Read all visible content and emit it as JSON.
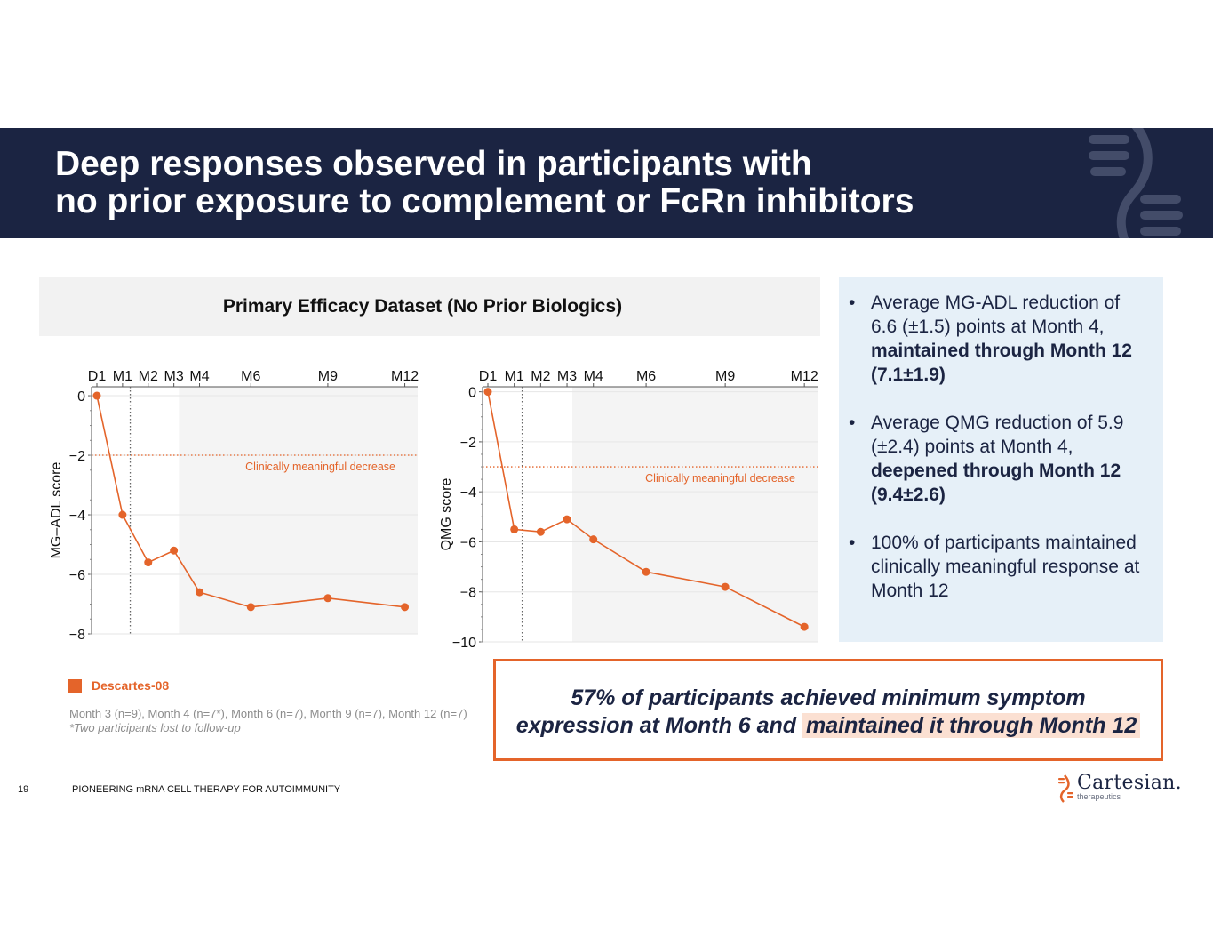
{
  "header": {
    "title_line1": "Deep responses observed in participants with",
    "title_line2": "no prior exposure to complement or FcRn inhibitors"
  },
  "dataset_title": "Primary Efficacy Dataset (No Prior Biologics)",
  "colors": {
    "accent": "#e4642a",
    "navy": "#1b2442",
    "panel": "#e6f0f8",
    "highlight": "#fbe0d2"
  },
  "chart_data": [
    {
      "type": "line",
      "name": "mg-adl",
      "ylabel": "MG–ADL score",
      "x_months": [
        0,
        1,
        2,
        3,
        4,
        6,
        9,
        12
      ],
      "x_ticks": [
        0,
        1,
        2,
        3,
        4,
        6,
        9,
        12
      ],
      "x_tick_labels": [
        "D1",
        "M1",
        "M2",
        "M3",
        "M4",
        "M6",
        "M9",
        "M12"
      ],
      "x_range": [
        0,
        12.5
      ],
      "y_ticks": [
        0,
        -2,
        -4,
        -6,
        -8
      ],
      "y_tick_labels": [
        "0",
        "−2",
        "−4",
        "−6",
        "−8"
      ],
      "ylim": [
        -8,
        0.3
      ],
      "series": [
        {
          "name": "Descartes-08",
          "values": [
            0,
            -4.0,
            -5.6,
            -5.2,
            -6.6,
            -7.1,
            -6.8,
            -7.1
          ]
        }
      ],
      "threshold": -2,
      "threshold_label": "Clinically meaningful decrease",
      "vline_month": 1.3,
      "shaded_from_month": 3.2
    },
    {
      "type": "line",
      "name": "qmg",
      "ylabel": "QMG score",
      "x_months": [
        0,
        1,
        2,
        3,
        4,
        6,
        9,
        12
      ],
      "x_ticks": [
        0,
        1,
        2,
        3,
        4,
        6,
        9,
        12
      ],
      "x_tick_labels": [
        "D1",
        "M1",
        "M2",
        "M3",
        "M4",
        "M6",
        "M9",
        "M12"
      ],
      "x_range": [
        0,
        12.5
      ],
      "y_ticks": [
        0,
        -2,
        -4,
        -6,
        -8,
        -10
      ],
      "y_tick_labels": [
        "0",
        "−2",
        "−4",
        "−6",
        "−8",
        "−10"
      ],
      "ylim": [
        -10,
        0.2
      ],
      "series": [
        {
          "name": "Descartes-08",
          "values": [
            0,
            -5.5,
            -5.6,
            -5.1,
            -5.9,
            -7.2,
            -7.8,
            -9.4
          ]
        }
      ],
      "threshold": -3,
      "threshold_label": "Clinically meaningful decrease",
      "vline_month": 1.3,
      "shaded_from_month": 3.2
    }
  ],
  "legend": {
    "label": "Descartes-08"
  },
  "notes": {
    "counts": "Month 3 (n=9), Month 4 (n=7*), Month 6 (n=7), Month 9 (n=7), Month 12 (n=7)",
    "footnote": "*Two participants lost to follow-up"
  },
  "bullets": [
    {
      "text": "Average MG-ADL reduction of 6.6 (±1.5) points at Month 4, ",
      "bold": "maintained through Month 12 (7.1±1.9)"
    },
    {
      "text": "Average QMG reduction of 5.9 (±2.4) points at Month 4, ",
      "bold": "deepened through Month 12 (9.4±2.6)"
    },
    {
      "text": "100% of participants maintained clinically meaningful response at Month 12",
      "bold": ""
    }
  ],
  "callout": {
    "line1": "57% of participants achieved minimum symptom",
    "line2_plain": "expression at Month 6 and ",
    "line2_highlight": "maintained it through Month 12"
  },
  "footer": {
    "page_number": "19",
    "text": "PIONEERING mRNA CELL THERAPY FOR AUTOIMMUNITY"
  },
  "brand": {
    "name": "Cartesian.",
    "tagline": "therapeutics"
  }
}
